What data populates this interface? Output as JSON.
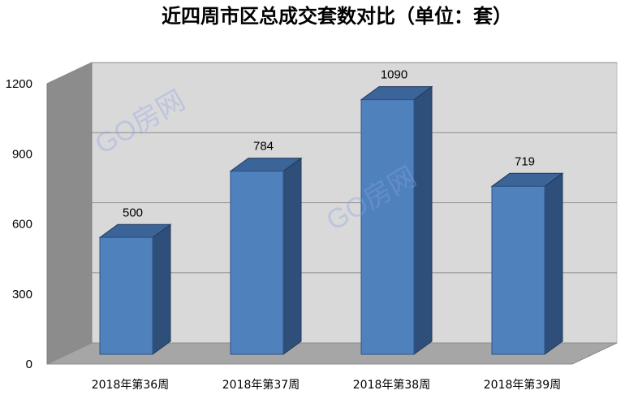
{
  "chart_data": {
    "type": "bar",
    "title": "近四周市区总成交套数对比（单位：套）",
    "categories": [
      "2018年第36周",
      "2018年第37周",
      "2018年第38周",
      "2018年第39周"
    ],
    "values": [
      500,
      784,
      1090,
      719
    ],
    "yticks": [
      0,
      300,
      600,
      900,
      1200
    ],
    "ylim": [
      0,
      1200
    ],
    "xlabel": "",
    "ylabel": "",
    "grid": true,
    "legend": "none",
    "style": "3d-column",
    "colors": {
      "bar_front": "#4f81bd",
      "bar_side": "#2e4f7a",
      "bar_top": "#3b6499",
      "back_wall": "#d9d9d9",
      "side_wall": "#8c8c8c",
      "floor": "#a6a6a6",
      "gridline": "#8c8c8c"
    }
  },
  "watermark": "GO房网"
}
